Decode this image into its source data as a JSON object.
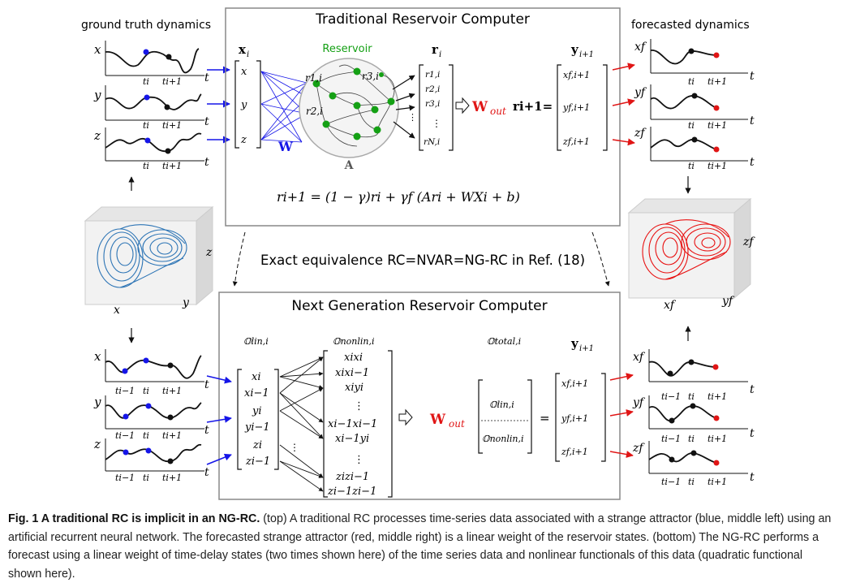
{
  "top_panel": {
    "title": "Traditional Reservoir Computer",
    "input_vector": "x",
    "input_subscript": "i",
    "input_components": [
      "x",
      "y",
      "z"
    ],
    "reservoir_label": "Reservoir",
    "reservoir_nodes": [
      "r1,i",
      "r3,i",
      "r2,i"
    ],
    "input_weight": "W",
    "adjacency_label": "A",
    "state_vector": "r",
    "state_subscript": "i",
    "state_components": [
      "r1,i",
      "r2,i",
      "r3,i",
      "⋮",
      "rN,i"
    ],
    "wout": "W",
    "wout_sub": "out",
    "equals_expr": "ri+1=",
    "output_vector": "y",
    "output_subscript": "i+1",
    "output_components": [
      "xf,i+1",
      "yf,i+1",
      "zf,i+1"
    ],
    "equation": "ri+1 = (1 − γ)ri + γf (Ari + WXi + b)"
  },
  "left_labels": {
    "ground_truth": "ground truth dynamics",
    "axis_x": "x",
    "axis_y": "y",
    "axis_z": "z",
    "axis_t": "t",
    "tick_i": "ti",
    "tick_i1": "ti+1",
    "tick_im1": "ti−1"
  },
  "right_labels": {
    "forecasted": "forecasted dynamics",
    "axis_xf": "xf",
    "axis_yf": "yf",
    "axis_zf": "zf"
  },
  "attractor_axes": {
    "x": "x",
    "y": "y",
    "z": "z",
    "xf": "xf",
    "yf": "yf",
    "zf": "zf"
  },
  "middle_text": "Exact equivalence RC=NVAR=NG-RC in Ref. (18)",
  "bottom_panel": {
    "title": "Next Generation Reservoir Computer",
    "lin_label": "𝕆lin,i",
    "nonlin_label": "𝕆nonlin,i",
    "total_label": "𝕆total,i",
    "lin_components": [
      "xi",
      "xi−1",
      "yi",
      "yi−1",
      "zi",
      "zi−1"
    ],
    "nonlin_components": [
      "xixi",
      "xixi−1",
      "xiyi",
      "⋮",
      "xi−1xi−1",
      "xi−1yi",
      "⋮",
      "zizi−1",
      "zi−1zi−1"
    ],
    "total_components": [
      "𝕆lin,i",
      "𝕆nonlin,i"
    ],
    "output_vector": "y",
    "output_subscript": "i+1",
    "output_components": [
      "xf,i+1",
      "yf,i+1",
      "zf,i+1"
    ],
    "equals": "="
  },
  "caption": {
    "bold": "Fig. 1 A traditional RC is implicit in an NG-RC.",
    "text": " (top) A traditional RC processes time-series data associated with a strange attractor (blue, middle left) using an artificial recurrent neural network. The forecasted strange attractor (red, middle right) is a linear weight of the reservoir states. (bottom) The NG-RC performs a forecast using a linear weight of time-delay states (two times shown here) of the time series data and nonlinear functionals of this data (quadratic functional shown here)."
  },
  "colors": {
    "blue": "#1515e8",
    "red": "#e01515",
    "green": "#14a014",
    "attractor_blue": "#2c74b5",
    "attractor_red": "#e81010"
  }
}
